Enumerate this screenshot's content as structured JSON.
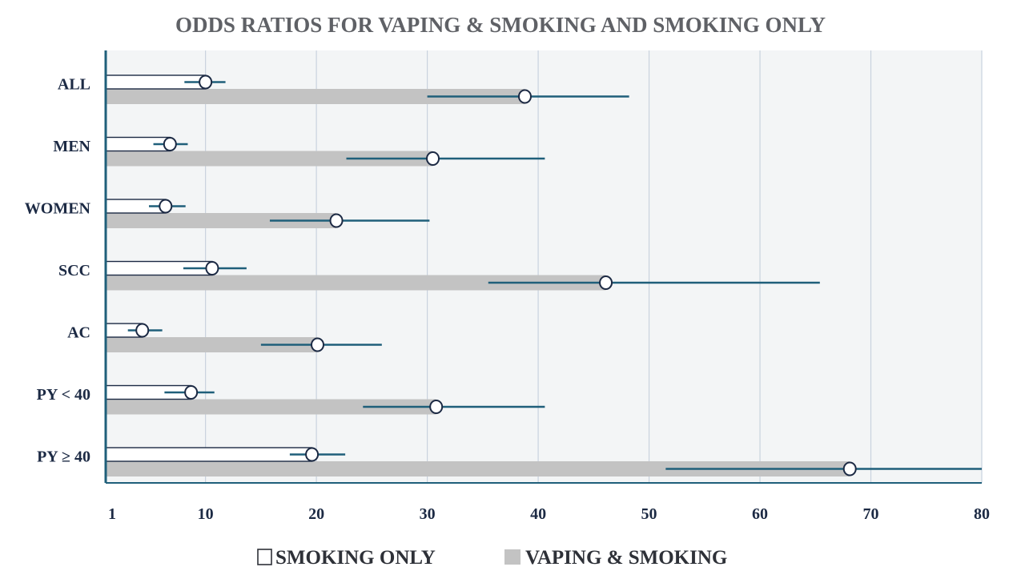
{
  "chart_data": {
    "type": "bar",
    "title": "ODDS RATIOS FOR VAPING & SMOKING AND SMOKING ONLY",
    "categories": [
      "ALL",
      "MEN",
      "WOMEN",
      "SCC",
      "AC",
      "PY < 40",
      "PY ≥ 40"
    ],
    "series": [
      {
        "name": "SMOKING ONLY",
        "color": "#ffffff",
        "values": [
          10.0,
          6.8,
          6.4,
          10.6,
          4.3,
          8.7,
          19.6
        ],
        "ci_low": [
          8.1,
          5.3,
          4.9,
          8.0,
          3.0,
          6.3,
          17.6
        ],
        "ci_high": [
          11.8,
          8.4,
          8.2,
          13.7,
          6.1,
          10.8,
          22.6
        ]
      },
      {
        "name": "VAPING & SMOKING",
        "color": "#c3c3c3",
        "values": [
          38.8,
          30.5,
          21.8,
          46.1,
          20.1,
          30.8,
          68.1
        ],
        "ci_low": [
          30.0,
          22.7,
          15.8,
          35.5,
          15.0,
          24.2,
          51.5
        ],
        "ci_high": [
          48.2,
          40.6,
          30.2,
          65.4,
          25.9,
          40.6,
          80.0
        ]
      }
    ],
    "xaxis": {
      "ticks": [
        1,
        10,
        20,
        30,
        40,
        50,
        60,
        70,
        80
      ],
      "tick_labels": [
        "1",
        "10",
        "20",
        "30",
        "40",
        "50",
        "60",
        "70",
        "80"
      ],
      "range": [
        1,
        80
      ]
    },
    "grid": true,
    "legend_position": "bottom",
    "colors": {
      "plot_background": "#f3f5f6",
      "grid": "#c9d2de",
      "axis": "#1f5f7a",
      "ci_line": "#1f5f7a",
      "marker_fill": "#ffffff",
      "marker_stroke": "#1c2a44",
      "title_text": "#5f6166",
      "label_text": "#1c2a44"
    }
  }
}
